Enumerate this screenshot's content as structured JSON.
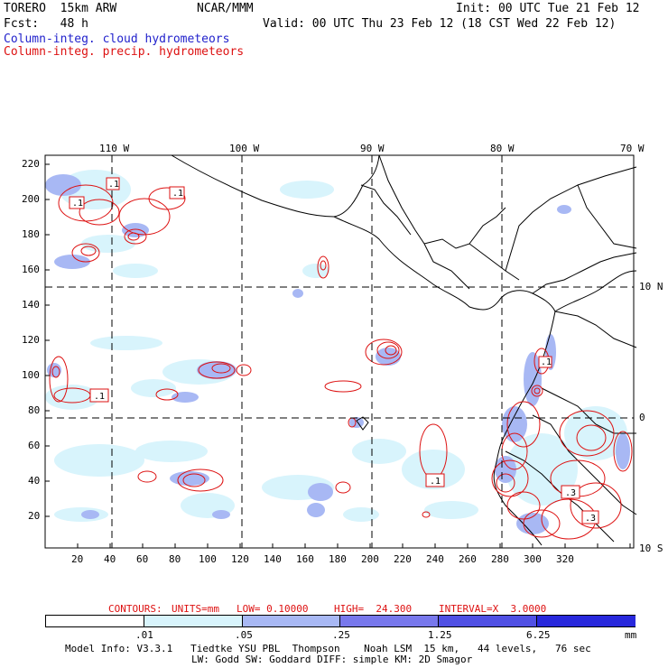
{
  "header": {
    "model": "TORERO  15km ARW",
    "org": "NCAR/MMM",
    "init": "Init: 00 UTC Tue 21 Feb 12",
    "fcst": "Fcst:   48 h",
    "valid": "Valid: 00 UTC Thu 23 Feb 12 (18 CST Wed 22 Feb 12)",
    "legend_cloud": "Column-integ. cloud hydrometeors",
    "legend_precip": "Column-integ. precip. hydrometeors"
  },
  "map": {
    "top_lon_labels": [
      "110 W",
      "100 W",
      "90 W",
      "80 W",
      "70 W"
    ],
    "right_lat_labels": [
      "10 N",
      "0",
      "10 S"
    ],
    "y_ticks": [
      "220",
      "200",
      "180",
      "160",
      "140",
      "120",
      "100",
      "80",
      "60",
      "40",
      "20"
    ],
    "x_ticks": [
      "20",
      "40",
      "60",
      "80",
      "100",
      "120",
      "140",
      "160",
      "180",
      "200",
      "220",
      "240",
      "260",
      "280",
      "300",
      "320"
    ],
    "contour_labels": [
      ".1",
      ".1",
      ".1",
      ".1",
      ".1",
      ".1",
      ".3",
      ".3"
    ]
  },
  "contours": {
    "label": "CONTOURS:",
    "units": "UNITS=mm",
    "low": "LOW= 0.10000",
    "high": "HIGH=  24.300",
    "interval": "INTERVAL=X  3.0000"
  },
  "colorbar": {
    "labels": [
      ".01",
      ".05",
      ".25",
      "1.25",
      "6.25"
    ],
    "unit": "mm",
    "colors": [
      "#ffffff",
      "#d8f4fc",
      "#a8b8f4",
      "#7878ec",
      "#5050e4",
      "#2828dc"
    ]
  },
  "footer": {
    "line1": "Model Info: V3.3.1   Tiedtke YSU PBL  Thompson    Noah LSM  15 km,   44 levels,   76 sec",
    "line2": "LW: Godd SW: Goddard DIFF: simple KM: 2D Smagor"
  }
}
